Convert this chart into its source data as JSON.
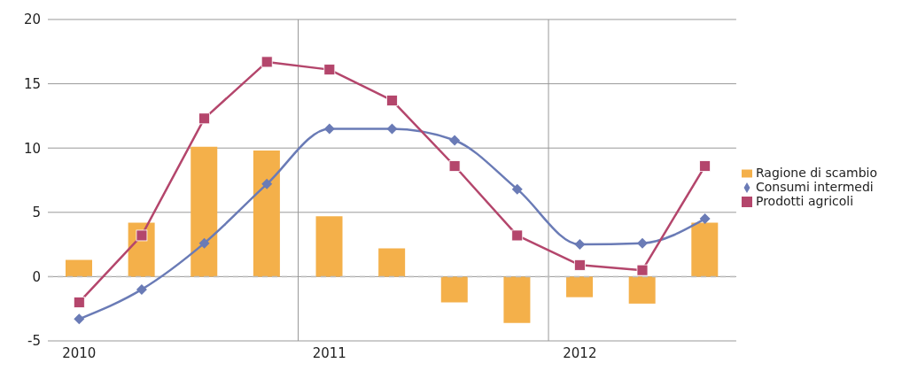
{
  "chart_data": {
    "type": "bar",
    "categories": [
      "2010",
      null,
      null,
      null,
      "2011",
      null,
      null,
      null,
      "2012",
      null,
      null
    ],
    "series": [
      {
        "name": "Ragione di scambio",
        "color": "#f4b04a",
        "values": [
          1.3,
          4.2,
          10.1,
          9.8,
          4.7,
          2.2,
          -2.0,
          -3.6,
          -1.6,
          -2.1,
          4.2
        ]
      },
      {
        "name": "Consumi intermedi",
        "type": "line",
        "color": "#6a7bb6",
        "marker": "diamond",
        "values": [
          -3.3,
          -1.0,
          2.6,
          7.2,
          11.5,
          11.5,
          10.6,
          6.8,
          2.5,
          2.6,
          4.5
        ]
      },
      {
        "name": "Prodotti agricoli",
        "type": "line",
        "color": "#b4466c",
        "marker": "square",
        "values": [
          -2.0,
          3.2,
          12.3,
          16.7,
          16.1,
          13.7,
          8.6,
          3.2,
          0.9,
          0.5,
          8.6
        ]
      }
    ],
    "ylim": [
      -5,
      20
    ],
    "yticks": [
      -5,
      0,
      5,
      10,
      15,
      20
    ],
    "grid": true,
    "legend": "right",
    "ref_lines": [
      {
        "axis": "y",
        "value": 0,
        "color": "#bbbbbb",
        "line_style": "dashed"
      }
    ]
  }
}
